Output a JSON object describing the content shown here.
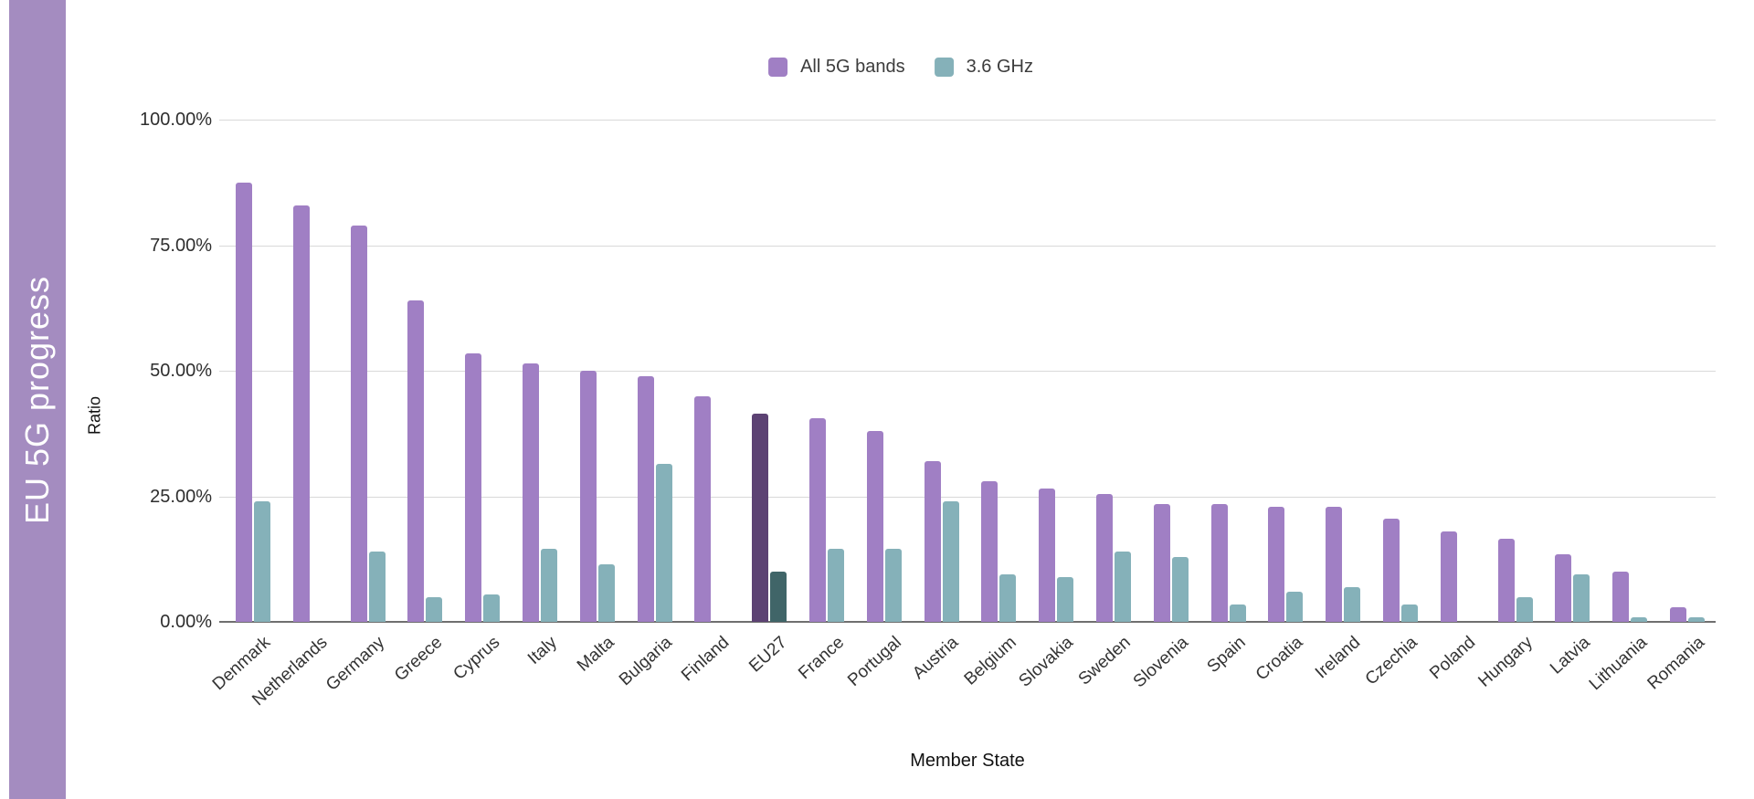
{
  "sidebar": {
    "title": "EU 5G progress",
    "color": "#a48cc0"
  },
  "chart_data": {
    "type": "bar",
    "title": "EU 5G progress",
    "xlabel": "Member State",
    "ylabel": "Ratio",
    "ylim": [
      0,
      100
    ],
    "grid": true,
    "legend_position": "top",
    "y_ticks": [
      {
        "label": "100.00%",
        "value": 100
      },
      {
        "label": "75.00%",
        "value": 75
      },
      {
        "label": "50.00%",
        "value": 50
      },
      {
        "label": "25.00%",
        "value": 25
      },
      {
        "label": "0.00%",
        "value": 0
      }
    ],
    "categories": [
      "Denmark",
      "Netherlands",
      "Germany",
      "Greece",
      "Cyprus",
      "Italy",
      "Malta",
      "Bulgaria",
      "Finland",
      "EU27",
      "France",
      "Portugal",
      "Austria",
      "Belgium",
      "Slovakia",
      "Sweden",
      "Slovenia",
      "Spain",
      "Croatia",
      "Ireland",
      "Czechia",
      "Poland",
      "Hungary",
      "Latvia",
      "Lithuania",
      "Romania"
    ],
    "series": [
      {
        "name": "All 5G bands",
        "color": "#a07fc4",
        "values": [
          87.5,
          83,
          79,
          64,
          53.5,
          51.5,
          50,
          49,
          45,
          41.5,
          40.5,
          38,
          32,
          28,
          26.5,
          25.5,
          23.5,
          23.5,
          23,
          23,
          20.5,
          18,
          16.5,
          13.5,
          10,
          3
        ]
      },
      {
        "name": "3.6 GHz",
        "color": "#85b1b9",
        "values": [
          24,
          null,
          14,
          5,
          5.5,
          14.5,
          11.5,
          31.5,
          null,
          10,
          14.5,
          14.5,
          24,
          9.5,
          9,
          14,
          13,
          3.5,
          6,
          7,
          3.5,
          null,
          5,
          9.5,
          1,
          1
        ]
      }
    ],
    "highlight": {
      "category": "EU27",
      "index": 9,
      "colors": [
        "#5c4273",
        "#406568"
      ]
    },
    "colors": {
      "gridline": "#d9d9d9",
      "axis_line": "#6f6f6f",
      "tick_text": "#2e2e2e"
    }
  }
}
